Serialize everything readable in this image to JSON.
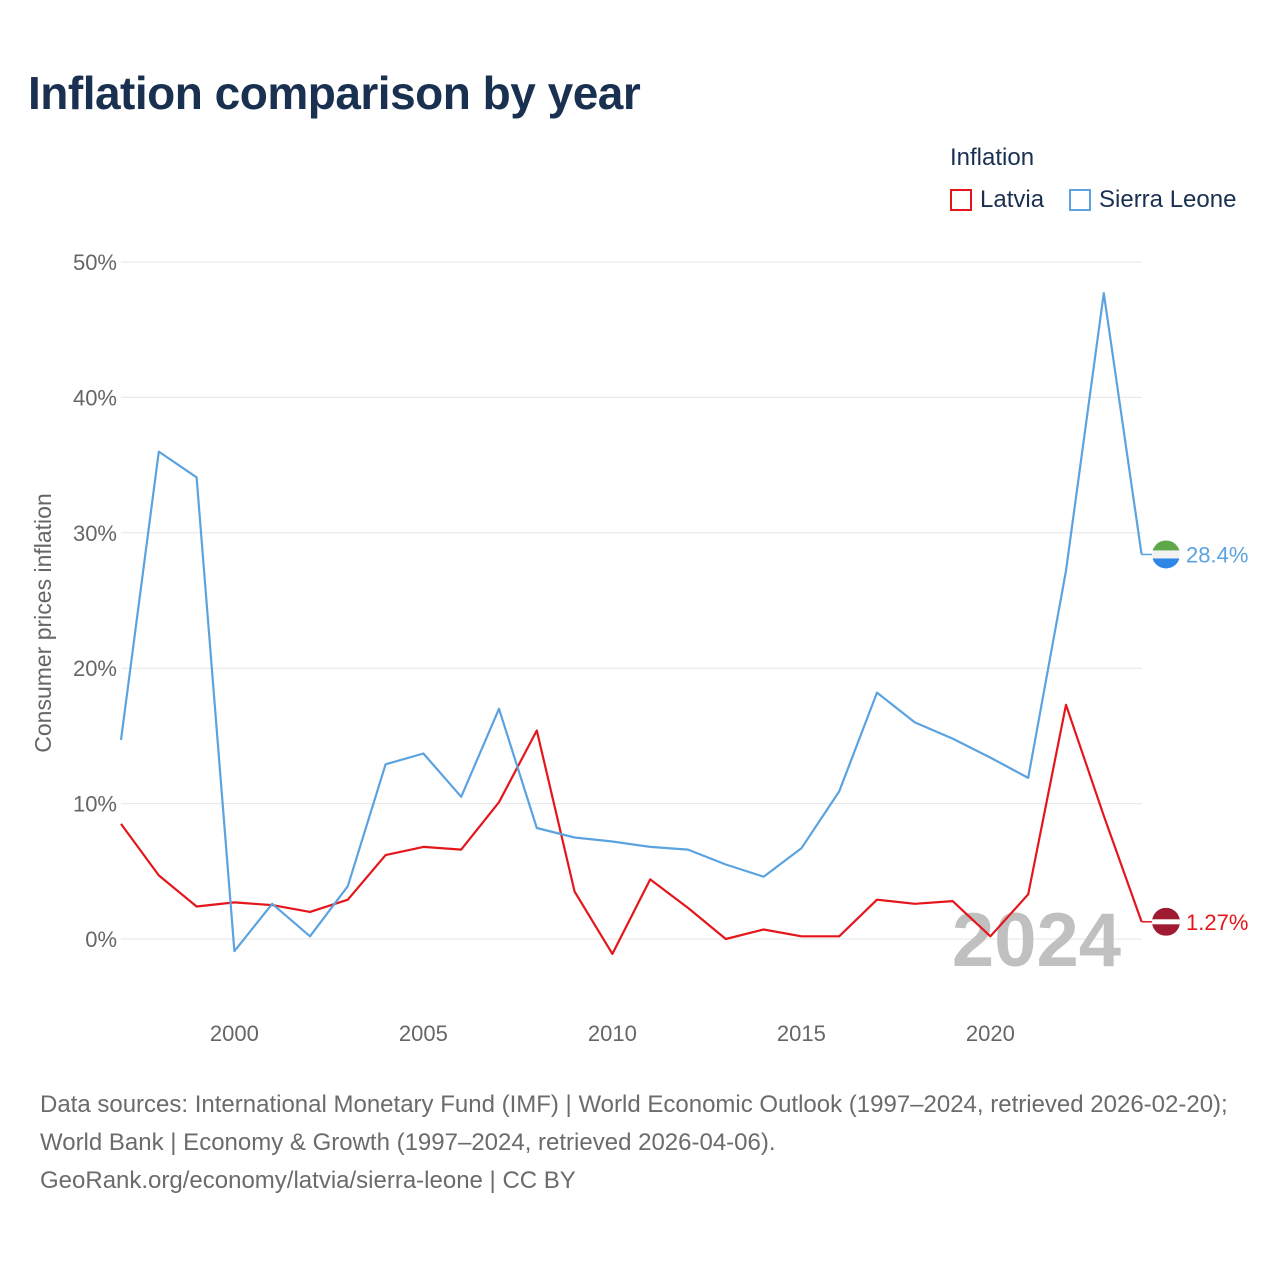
{
  "title": "Inflation comparison by year",
  "legend": {
    "title": "Inflation",
    "items": [
      {
        "name": "Latvia",
        "color": "#e4161b"
      },
      {
        "name": "Sierra Leone",
        "color": "#5ba3e0"
      }
    ]
  },
  "chart_data": {
    "type": "line",
    "title": "Inflation comparison by year",
    "xlabel": "",
    "ylabel": "Consumer prices inflation",
    "ylim": [
      -5,
      52
    ],
    "xlim": [
      1997,
      2024
    ],
    "yticks": [
      0,
      10,
      20,
      30,
      40,
      50
    ],
    "ytick_labels": [
      "0%",
      "10%",
      "20%",
      "30%",
      "40%",
      "50%"
    ],
    "xticks": [
      2000,
      2005,
      2010,
      2015,
      2020
    ],
    "xtick_labels": [
      "2000",
      "2005",
      "2010",
      "2015",
      "2020"
    ],
    "grid": true,
    "current_year": "2024",
    "x": [
      1997,
      1998,
      1999,
      2000,
      2001,
      2002,
      2003,
      2004,
      2005,
      2006,
      2007,
      2008,
      2009,
      2010,
      2011,
      2012,
      2013,
      2014,
      2015,
      2016,
      2017,
      2018,
      2019,
      2020,
      2021,
      2022,
      2023,
      2024
    ],
    "series": [
      {
        "name": "Latvia",
        "color": "#e4161b",
        "end_label": "1.27%",
        "values": [
          8.5,
          4.7,
          2.4,
          2.7,
          2.5,
          2.0,
          2.9,
          6.2,
          6.8,
          6.6,
          10.1,
          15.4,
          3.5,
          -1.1,
          4.4,
          2.3,
          0.0,
          0.7,
          0.2,
          0.2,
          2.9,
          2.6,
          2.8,
          0.2,
          3.3,
          17.3,
          9.1,
          1.27
        ]
      },
      {
        "name": "Sierra Leone",
        "color": "#5ba3e0",
        "end_label": "28.4%",
        "values": [
          14.7,
          36.0,
          34.1,
          -0.9,
          2.6,
          0.2,
          3.9,
          12.9,
          13.7,
          10.5,
          17.0,
          8.2,
          7.5,
          7.2,
          6.8,
          6.6,
          5.5,
          4.6,
          6.7,
          10.9,
          18.2,
          16.0,
          14.8,
          13.4,
          11.9,
          27.2,
          47.7,
          28.4
        ]
      }
    ]
  },
  "source": {
    "line1": "Data sources: International Monetary Fund (IMF) | World Economic Outlook (1997–2024, retrieved 2026-02-20); World Bank | Economy & Growth (1997–2024, retrieved 2026-04-06).",
    "line2": "GeoRank.org/economy/latvia/sierra-leone | CC BY"
  }
}
